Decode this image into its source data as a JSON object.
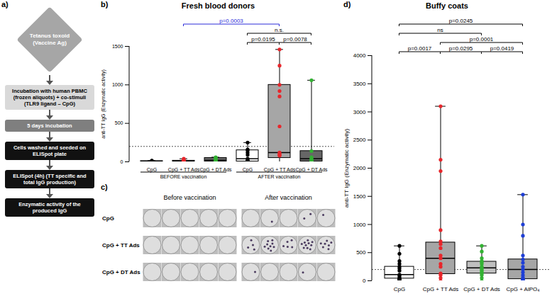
{
  "diagram": {
    "panel": "a)",
    "nodes": [
      {
        "label": "Tetanus toxoid (Vaccine Ag)",
        "color": "#a6a6a6"
      },
      {
        "label": "Incubation with human PBMC (frozen aliquots) + co-stimuli (TLR9 ligand – CpG)",
        "color": "#d9d9d9"
      },
      {
        "label": "5 days incubation",
        "color": "#7f7f7f"
      },
      {
        "label": "Cells washed and seeded on ELISpot plate",
        "color": "#111111"
      },
      {
        "label": "ELISpot (4h) (TT specific and total IgG production)",
        "color": "#111111"
      },
      {
        "label": "Enzymatic activity of the produced IgG",
        "color": "#111111"
      }
    ]
  },
  "chart_data": [
    {
      "panel": "b)",
      "type": "box",
      "title": "Fresh blood donors",
      "ylabel": "anti-TT IgG (Enzymatic activity)",
      "categories": [
        "CpG",
        "CpG + TT Ads",
        "CpG + DT Ads",
        "CpG",
        "CpG + TT Ads",
        "CpG + DT Ads"
      ],
      "groups": [
        {
          "label": "BEFORE vaccination",
          "span": [
            0,
            2
          ]
        },
        {
          "label": "AFTER vaccination",
          "span": [
            3,
            5
          ]
        }
      ],
      "colors": [
        "#000000",
        "#e8262b",
        "#33b233",
        "#000000",
        "#e8262b",
        "#33b233"
      ],
      "box_colors": [
        "#ffffff",
        "#ffffff",
        "#666666",
        "#ffffff",
        "#a6a6a6",
        "#666666"
      ],
      "boxes": [
        {
          "min": 0,
          "q1": 2,
          "median": 5,
          "q3": 10,
          "max": 15
        },
        {
          "min": 0,
          "q1": 3,
          "median": 8,
          "q3": 15,
          "max": 40
        },
        {
          "min": 0,
          "q1": 5,
          "median": 20,
          "q3": 50,
          "max": 60
        },
        {
          "min": 0,
          "q1": 5,
          "median": 40,
          "q3": 150,
          "max": 250
        },
        {
          "min": 0,
          "q1": 50,
          "median": 120,
          "q3": 1000,
          "max": 1460
        },
        {
          "min": 0,
          "q1": 5,
          "median": 40,
          "q3": 140,
          "max": 1060
        }
      ],
      "points": [
        [
          15,
          12,
          10,
          8,
          6,
          5,
          4,
          3,
          2,
          0
        ],
        [
          40,
          28,
          20,
          15,
          10,
          8,
          6,
          4,
          2,
          0
        ],
        [
          60,
          55,
          50,
          40,
          25,
          20,
          10,
          5,
          3,
          0
        ],
        [
          250,
          160,
          150,
          120,
          90,
          40,
          20,
          10,
          5,
          0
        ],
        [
          1460,
          1250,
          1000,
          920,
          850,
          460,
          120,
          100,
          90,
          80
        ],
        [
          1060,
          140,
          60,
          45,
          30,
          20,
          10,
          5,
          0
        ]
      ],
      "threshold": 200,
      "ylim": [
        0,
        1500
      ],
      "yticks": [
        0,
        500,
        1000,
        1500
      ],
      "comparisons": [
        {
          "between": [
            1,
            4
          ],
          "label": "p=0.0003",
          "color": "#2b2bd9"
        },
        {
          "between": [
            3,
            4
          ],
          "label": "p=0.0195"
        },
        {
          "between": [
            3,
            5
          ],
          "label": "n.s."
        },
        {
          "between": [
            4,
            5
          ],
          "label": "p=0.0078"
        }
      ]
    },
    {
      "panel": "d)",
      "type": "box",
      "title": "Buffy coats",
      "ylabel": "anti-TT IgG (Enzymatic activity)",
      "categories": [
        "CpG",
        "CpG + TT Ads",
        "CpG + DT Ads",
        "CpG + AlPO₄"
      ],
      "colors": [
        "#000000",
        "#e8262b",
        "#33b233",
        "#1f3fd6"
      ],
      "box_colors": [
        "#ffffff",
        "#a6a6a6",
        "#bfbfbf",
        "#a6a6a6"
      ],
      "boxes": [
        {
          "min": 0,
          "q1": 40,
          "median": 110,
          "q3": 250,
          "max": 620
        },
        {
          "min": 0,
          "q1": 120,
          "median": 400,
          "q3": 680,
          "max": 3100
        },
        {
          "min": 0,
          "q1": 130,
          "median": 230,
          "q3": 340,
          "max": 620
        },
        {
          "min": 0,
          "q1": 30,
          "median": 200,
          "q3": 380,
          "max": 1530
        }
      ],
      "points": [
        [
          620,
          480,
          350,
          300,
          250,
          220,
          180,
          110,
          90,
          60,
          40,
          30,
          20,
          10,
          0
        ],
        [
          3100,
          2150,
          1950,
          900,
          700,
          650,
          580,
          450,
          400,
          300,
          250,
          130,
          100,
          50,
          0
        ],
        [
          620,
          520,
          400,
          350,
          330,
          300,
          250,
          230,
          200,
          180,
          150,
          130,
          100,
          50,
          0
        ],
        [
          1530,
          1000,
          800,
          450,
          380,
          320,
          250,
          200,
          150,
          100,
          60,
          30,
          20,
          10,
          0
        ]
      ],
      "threshold": 200,
      "ylim": [
        0,
        4000
      ],
      "yticks": [
        0,
        500,
        1000,
        1500,
        2000,
        2500,
        3000,
        3500,
        4000
      ],
      "comparisons": [
        {
          "between": [
            0,
            1
          ],
          "label": "p=0.0017"
        },
        {
          "between": [
            1,
            2
          ],
          "label": "p=0.0295"
        },
        {
          "between": [
            1,
            3
          ],
          "label": "p=0.0001"
        },
        {
          "between": [
            0,
            2
          ],
          "label": "ns"
        },
        {
          "between": [
            0,
            3
          ],
          "label": "p=0.0245"
        },
        {
          "between": [
            2,
            3
          ],
          "label": "p=0.0419"
        }
      ]
    }
  ],
  "image": {
    "panel": "c)",
    "column_titles": [
      "Before vaccination",
      "After vaccination"
    ],
    "row_labels": [
      "CpG",
      "CpG + TT Ads",
      "CpG + DT Ads"
    ],
    "spots": [
      [
        [
          0,
          0,
          0,
          0,
          0
        ],
        [
          0,
          1,
          0,
          2,
          1
        ]
      ],
      [
        [
          0,
          0,
          0,
          0,
          0
        ],
        [
          4,
          9,
          5,
          10,
          7
        ]
      ],
      [
        [
          0,
          0,
          0,
          0,
          0
        ],
        [
          1,
          0,
          0,
          1,
          0
        ]
      ]
    ]
  }
}
